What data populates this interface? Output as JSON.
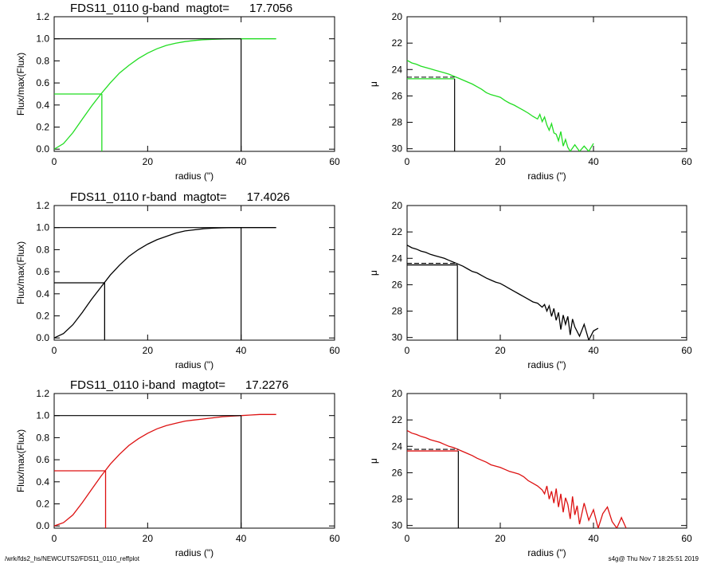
{
  "footer": {
    "path": "/wrk/fds2_hs/NEWCUTS2/FDS11_0110_reffplot",
    "stamp": "s4g@  Thu Nov  7 18:25:51 2019"
  },
  "chart_data": [
    {
      "type": "line",
      "panel": "growth-curve",
      "band": "g",
      "title": "FDS11_0110 g-band  magtot=      17.7056",
      "xlabel": "radius (\")",
      "ylabel": "Flux/max(Flux)",
      "xlim": [
        0,
        60
      ],
      "ylim": [
        -0.02,
        1.2
      ],
      "xticks": [
        0,
        20,
        40,
        60
      ],
      "yticks": [
        0.0,
        0.2,
        0.4,
        0.6,
        0.8,
        1.0,
        1.2
      ],
      "curve_color": "#22dd22",
      "r_half": 10.2,
      "r_total": 40.0,
      "series": [
        {
          "x": [
            0,
            2,
            4,
            6,
            8,
            10,
            12,
            14,
            16,
            18,
            20,
            22,
            24,
            26,
            28,
            30,
            32,
            34,
            36,
            38,
            40,
            42,
            44,
            46,
            47.5
          ],
          "y": [
            0,
            0.05,
            0.15,
            0.27,
            0.39,
            0.5,
            0.6,
            0.69,
            0.76,
            0.82,
            0.87,
            0.91,
            0.94,
            0.96,
            0.975,
            0.985,
            0.992,
            0.996,
            0.998,
            1.0,
            1.0,
            1.0,
            1.0,
            1.0,
            1.0
          ]
        }
      ]
    },
    {
      "type": "line",
      "panel": "surface-brightness",
      "band": "g",
      "xlabel": "radius (\")",
      "ylabel": "μ",
      "xlim": [
        0,
        60
      ],
      "ylim": [
        30.2,
        20
      ],
      "xticks": [
        0,
        20,
        40,
        60
      ],
      "yticks": [
        20,
        22,
        24,
        26,
        28,
        30
      ],
      "curve_color": "#22dd22",
      "mu_eff": 24.7,
      "r_eff": 10.2,
      "series": [
        {
          "x": [
            0,
            1,
            2,
            3,
            4,
            5,
            6,
            7,
            8,
            9,
            10,
            11,
            12,
            13,
            14,
            15,
            16,
            17,
            18,
            19,
            20,
            21,
            22,
            23,
            24,
            25,
            26,
            27,
            28,
            28.5,
            29,
            29.5,
            30,
            30.5,
            31,
            31.5,
            32,
            32.5,
            33,
            33.5,
            34,
            34.5,
            35,
            36,
            37,
            38,
            39,
            40
          ],
          "y": [
            23.3,
            23.5,
            23.6,
            23.75,
            23.85,
            23.95,
            24.05,
            24.15,
            24.25,
            24.35,
            24.5,
            24.65,
            24.8,
            24.95,
            25.1,
            25.3,
            25.5,
            25.75,
            25.9,
            26.0,
            26.1,
            26.35,
            26.55,
            26.7,
            26.9,
            27.1,
            27.3,
            27.55,
            27.75,
            27.4,
            27.95,
            27.6,
            28.2,
            28.6,
            28.1,
            28.8,
            28.9,
            29.4,
            28.7,
            29.8,
            29.3,
            29.9,
            30.2,
            29.7,
            30.2,
            29.8,
            30.2,
            29.6
          ]
        }
      ]
    },
    {
      "type": "line",
      "panel": "growth-curve",
      "band": "r",
      "title": "FDS11_0110 r-band  magtot=      17.4026",
      "xlabel": "radius (\")",
      "ylabel": "Flux/max(Flux)",
      "xlim": [
        0,
        60
      ],
      "ylim": [
        -0.02,
        1.2
      ],
      "xticks": [
        0,
        20,
        40,
        60
      ],
      "yticks": [
        0.0,
        0.2,
        0.4,
        0.6,
        0.8,
        1.0,
        1.2
      ],
      "curve_color": "#000000",
      "r_half": 10.8,
      "r_total": 40.0,
      "series": [
        {
          "x": [
            0,
            2,
            4,
            6,
            8,
            10,
            12,
            14,
            16,
            18,
            20,
            22,
            24,
            26,
            28,
            30,
            32,
            34,
            36,
            38,
            40,
            42,
            44,
            46,
            47.5
          ],
          "y": [
            0,
            0.04,
            0.12,
            0.23,
            0.35,
            0.46,
            0.57,
            0.66,
            0.74,
            0.8,
            0.85,
            0.89,
            0.92,
            0.95,
            0.97,
            0.98,
            0.99,
            0.995,
            0.998,
            1.0,
            1.0,
            1.0,
            1.0,
            1.0,
            1.0
          ]
        }
      ]
    },
    {
      "type": "line",
      "panel": "surface-brightness",
      "band": "r",
      "xlabel": "radius (\")",
      "ylabel": "μ",
      "xlim": [
        0,
        60
      ],
      "ylim": [
        30.2,
        20
      ],
      "xticks": [
        0,
        20,
        40,
        60
      ],
      "yticks": [
        20,
        22,
        24,
        26,
        28,
        30
      ],
      "curve_color": "#000000",
      "mu_eff": 24.5,
      "r_eff": 10.8,
      "series": [
        {
          "x": [
            0,
            1,
            2,
            3,
            4,
            5,
            6,
            7,
            8,
            9,
            10,
            11,
            12,
            13,
            14,
            15,
            16,
            17,
            18,
            19,
            20,
            21,
            22,
            23,
            24,
            25,
            26,
            27,
            28,
            29,
            29.5,
            30,
            30.5,
            31,
            31.5,
            32,
            32.5,
            33,
            33.5,
            34,
            34.5,
            35,
            35.5,
            36,
            37,
            38,
            39,
            40,
            41
          ],
          "y": [
            23.0,
            23.2,
            23.3,
            23.45,
            23.55,
            23.7,
            23.8,
            23.9,
            24.0,
            24.15,
            24.3,
            24.45,
            24.6,
            24.8,
            25.0,
            25.1,
            25.3,
            25.5,
            25.65,
            25.8,
            25.9,
            26.1,
            26.3,
            26.5,
            26.7,
            26.9,
            27.1,
            27.3,
            27.4,
            27.7,
            27.5,
            28.0,
            27.6,
            28.4,
            27.8,
            28.7,
            28.1,
            29.4,
            28.3,
            29.0,
            28.4,
            29.8,
            28.6,
            29.2,
            29.9,
            29.0,
            30.2,
            29.5,
            29.3
          ]
        }
      ]
    },
    {
      "type": "line",
      "panel": "growth-curve",
      "band": "i",
      "title": "FDS11_0110 i-band  magtot=      17.2276",
      "xlabel": "radius (\")",
      "ylabel": "Flux/max(Flux)",
      "xlim": [
        0,
        60
      ],
      "ylim": [
        -0.02,
        1.2
      ],
      "xticks": [
        0,
        20,
        40,
        60
      ],
      "yticks": [
        0.0,
        0.2,
        0.4,
        0.6,
        0.8,
        1.0,
        1.2
      ],
      "curve_color": "#dd1111",
      "r_half": 11.0,
      "r_total": 40.0,
      "series": [
        {
          "x": [
            0,
            2,
            4,
            6,
            8,
            10,
            12,
            14,
            16,
            18,
            20,
            22,
            24,
            26,
            28,
            30,
            32,
            34,
            36,
            38,
            40,
            42,
            44,
            46,
            47.5
          ],
          "y": [
            0,
            0.03,
            0.1,
            0.21,
            0.33,
            0.45,
            0.56,
            0.65,
            0.73,
            0.79,
            0.84,
            0.88,
            0.91,
            0.93,
            0.95,
            0.96,
            0.97,
            0.98,
            0.99,
            0.995,
            1.0,
            1.005,
            1.01,
            1.01,
            1.01
          ]
        }
      ]
    },
    {
      "type": "line",
      "panel": "surface-brightness",
      "band": "i",
      "xlabel": "radius (\")",
      "ylabel": "μ",
      "xlim": [
        0,
        60
      ],
      "ylim": [
        30.2,
        20
      ],
      "xticks": [
        0,
        20,
        40,
        60
      ],
      "yticks": [
        20,
        22,
        24,
        26,
        28,
        30
      ],
      "curve_color": "#dd1111",
      "mu_eff": 24.35,
      "r_eff": 11.0,
      "series": [
        {
          "x": [
            0,
            1,
            2,
            3,
            4,
            5,
            6,
            7,
            8,
            9,
            10,
            11,
            12,
            13,
            14,
            15,
            16,
            17,
            18,
            19,
            20,
            21,
            22,
            23,
            24,
            25,
            26,
            27,
            28,
            29,
            29.5,
            30,
            30.5,
            31,
            31.5,
            32,
            32.5,
            33,
            33.5,
            34,
            34.5,
            35,
            35.5,
            36,
            36.5,
            37,
            38,
            39,
            40,
            41,
            42,
            43,
            44,
            45,
            46,
            47
          ],
          "y": [
            22.8,
            23.0,
            23.1,
            23.25,
            23.35,
            23.5,
            23.6,
            23.7,
            23.85,
            24.0,
            24.1,
            24.25,
            24.4,
            24.55,
            24.7,
            24.9,
            25.05,
            25.2,
            25.4,
            25.5,
            25.6,
            25.75,
            25.9,
            26.0,
            26.1,
            26.3,
            26.6,
            26.8,
            27.0,
            27.3,
            27.6,
            27.0,
            28.0,
            27.4,
            28.3,
            27.2,
            28.6,
            27.6,
            29.0,
            27.9,
            28.4,
            29.5,
            27.8,
            29.2,
            28.5,
            29.9,
            28.3,
            29.6,
            28.8,
            30.2,
            29.1,
            28.6,
            29.7,
            30.2,
            29.4,
            30.2
          ]
        }
      ]
    }
  ]
}
